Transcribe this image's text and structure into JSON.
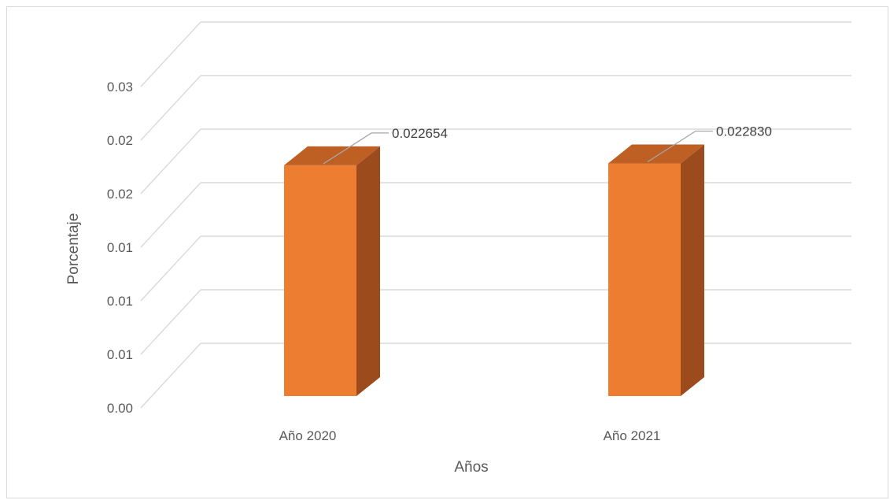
{
  "chart_data": {
    "type": "bar",
    "style": "3d-column",
    "categories": [
      "Año 2020",
      "Año 2021"
    ],
    "series": [
      {
        "values": [
          0.022654,
          0.02283
        ]
      }
    ],
    "data_labels": [
      "0.022654",
      "0.022830"
    ],
    "y_tick_labels": [
      "0.00",
      "0.01",
      "0.01",
      "0.01",
      "0.02",
      "0.02",
      "0.03"
    ],
    "ylim": [
      0,
      0.03
    ],
    "xlabel": "Años",
    "ylabel": "Porcentaje",
    "title": "",
    "grid": true,
    "legend": "none",
    "colors": {
      "bar_front": "#ED7D31",
      "bar_side": "#9C4C1C",
      "bar_top": "#BE5F24",
      "grid": "#D9D9D9",
      "text": "#595959"
    }
  }
}
